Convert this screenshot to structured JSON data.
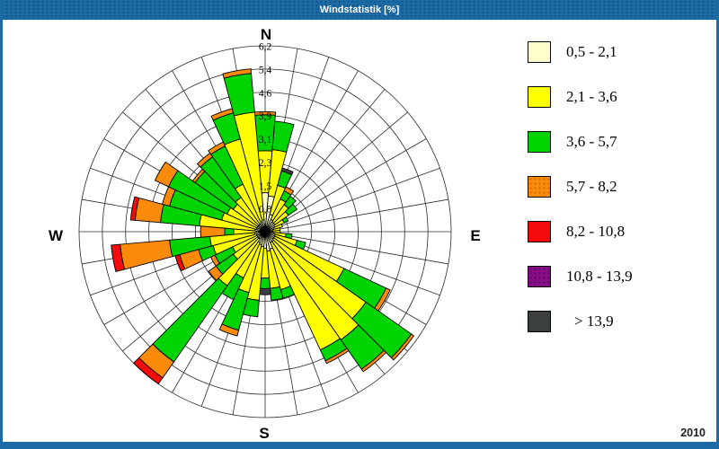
{
  "window": {
    "title": "Windstatistik [%]",
    "year_label": "2010"
  },
  "colors": {
    "frame_blue": "#1c6ba4",
    "frame_dot": "#14568c",
    "background": "#ffffff",
    "grid_line": "#2b2b2b"
  },
  "compass": {
    "north": "N",
    "east": "E",
    "south": "S",
    "west": "W"
  },
  "chart_data": {
    "type": "bar",
    "subtype": "wind-rose-stacked-polar-bar",
    "title": "Windstatistik [%]",
    "units": "%",
    "direction_step_deg": 10,
    "rmax": 6.2,
    "ring_step": 0.775,
    "ring_labels": [
      "0,8",
      "1,5",
      "2,3",
      "3,1",
      "3,9",
      "4,6",
      "5,4",
      "6,2"
    ],
    "grid": "on",
    "legend_position": "right",
    "directions_deg": [
      0,
      10,
      20,
      30,
      40,
      50,
      60,
      70,
      80,
      90,
      100,
      110,
      120,
      130,
      140,
      150,
      160,
      170,
      180,
      190,
      200,
      210,
      220,
      230,
      240,
      250,
      260,
      270,
      280,
      290,
      300,
      310,
      320,
      330,
      340,
      350
    ],
    "speed_classes": [
      {
        "label": "0,5 - 2,1",
        "color": "#ffffce",
        "dot_color": "",
        "dotted": false
      },
      {
        "label": "2,1 - 3,6",
        "color": "#ffff00",
        "dot_color": "",
        "dotted": false
      },
      {
        "label": "3,6 - 5,7",
        "color": "#00d400",
        "dot_color": "",
        "dotted": false
      },
      {
        "label": "5,7 - 8,2",
        "color": "#fa8a0a",
        "dot_color": "#d26a00",
        "dotted": true
      },
      {
        "label": "8,2 - 10,8",
        "color": "#f40b0b",
        "dot_color": "",
        "dotted": false
      },
      {
        "label": "10,8 - 13,9",
        "color": "#880e88",
        "dot_color": "#5e005e",
        "dotted": true
      },
      {
        "label": "> 13,9",
        "color": "#3f3f3f",
        "dot_color": "#2c453c",
        "dotted": true
      }
    ],
    "series": [
      {
        "name": "0,5 - 2,1",
        "values": [
          1.3,
          1.2,
          0.6,
          0.45,
          0.4,
          0.4,
          0.35,
          0.3,
          0.25,
          0.25,
          0.3,
          0.35,
          0.35,
          0.35,
          0.4,
          0.4,
          0.6,
          0.65,
          0.55,
          0.5,
          0.45,
          0.4,
          0.3,
          0.3,
          0.3,
          0.3,
          0.35,
          0.3,
          0.35,
          0.3,
          0.3,
          0.3,
          0.3,
          0.3,
          0.35,
          0.4
        ]
      },
      {
        "name": "2,1 - 3,6",
        "values": [
          1.4,
          1.55,
          1.0,
          0.75,
          0.7,
          0.55,
          0.35,
          0.3,
          0.25,
          0.25,
          0.4,
          0.75,
          2.55,
          3.75,
          4.0,
          3.95,
          1.4,
          1.25,
          1.0,
          1.8,
          1.65,
          1.3,
          1.9,
          1.0,
          0.9,
          1.5,
          1.5,
          0.75,
          1.85,
          1.2,
          1.1,
          1.0,
          1.1,
          1.45,
          2.85,
          3.6
        ]
      },
      {
        "name": "3,6 - 5,7",
        "values": [
          1.2,
          0.95,
          0.5,
          0.3,
          0.35,
          0.35,
          0.15,
          0,
          0,
          0,
          0.2,
          0.3,
          1.55,
          1.85,
          1.2,
          0.4,
          0.3,
          0.4,
          0.35,
          0.55,
          1.3,
          0.8,
          3.1,
          0.7,
          0.65,
          0.5,
          1.35,
          0.3,
          1.3,
          1.8,
          2.15,
          1.55,
          1.65,
          1.4,
          0.9,
          1.3
        ]
      },
      {
        "name": "5,7 - 8,2",
        "values": [
          0.1,
          0,
          0,
          0.15,
          0,
          0,
          0,
          0,
          0,
          0,
          0,
          0,
          0.15,
          0.1,
          0.1,
          0.1,
          0,
          0,
          0,
          0,
          0.2,
          0,
          0.65,
          0.3,
          0.15,
          0.65,
          1.65,
          0.8,
          0.85,
          0.25,
          0.5,
          0.1,
          0.15,
          0.15,
          0.15,
          0.15
        ]
      },
      {
        "name": "8,2 - 10,8",
        "values": [
          0,
          0,
          0,
          0,
          0,
          0,
          0,
          0,
          0,
          0,
          0,
          0,
          0,
          0,
          0,
          0,
          0,
          0,
          0,
          0,
          0,
          0,
          0.25,
          0,
          0,
          0.15,
          0.3,
          0,
          0.15,
          0,
          0,
          0,
          0,
          0,
          0,
          0
        ]
      },
      {
        "name": "10,8 - 13,9",
        "values": [
          0,
          0,
          0,
          0,
          0,
          0,
          0,
          0,
          0,
          0,
          0,
          0,
          0,
          0,
          0,
          0,
          0,
          0,
          0,
          0,
          0,
          0,
          0,
          0,
          0,
          0,
          0,
          0,
          0,
          0,
          0,
          0,
          0,
          0,
          0,
          0
        ]
      },
      {
        "name": "> 13,9",
        "values": [
          0,
          0,
          0.1,
          0,
          0,
          0,
          0,
          0,
          0,
          0,
          0,
          0,
          0,
          0,
          0,
          0,
          0,
          0,
          0.2,
          0,
          0,
          0,
          0,
          0,
          0,
          0,
          0,
          0,
          0,
          0,
          0,
          0,
          0,
          0,
          0,
          0
        ]
      }
    ]
  }
}
